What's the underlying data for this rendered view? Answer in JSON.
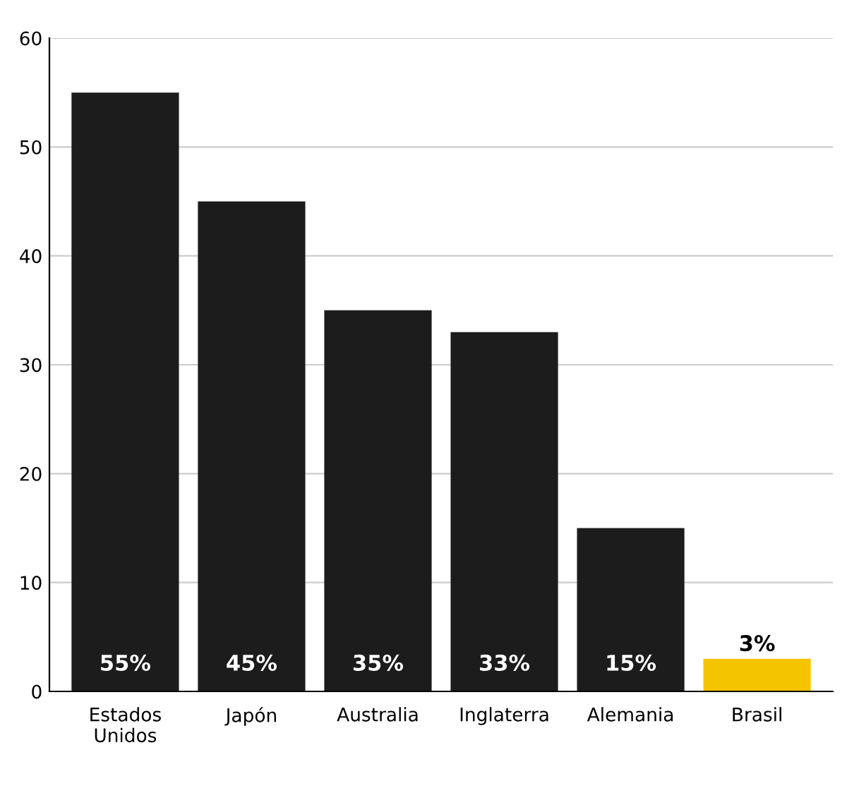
{
  "chart_data": {
    "type": "bar",
    "categories": [
      "Estados\nUnidos",
      "Japón",
      "Australia",
      "Inglaterra",
      "Alemania",
      "Brasil"
    ],
    "values": [
      55,
      45,
      35,
      33,
      15,
      3
    ],
    "colors": [
      "#1c1c1c",
      "#1c1c1c",
      "#1c1c1c",
      "#1c1c1c",
      "#1c1c1c",
      "#f5c400"
    ],
    "value_labels": [
      "55%",
      "45%",
      "35%",
      "33%",
      "15%",
      "3%"
    ],
    "ylim": [
      0,
      60
    ],
    "yticks": [
      0,
      10,
      20,
      30,
      40,
      50,
      60
    ],
    "grid": "y",
    "legend": false
  }
}
